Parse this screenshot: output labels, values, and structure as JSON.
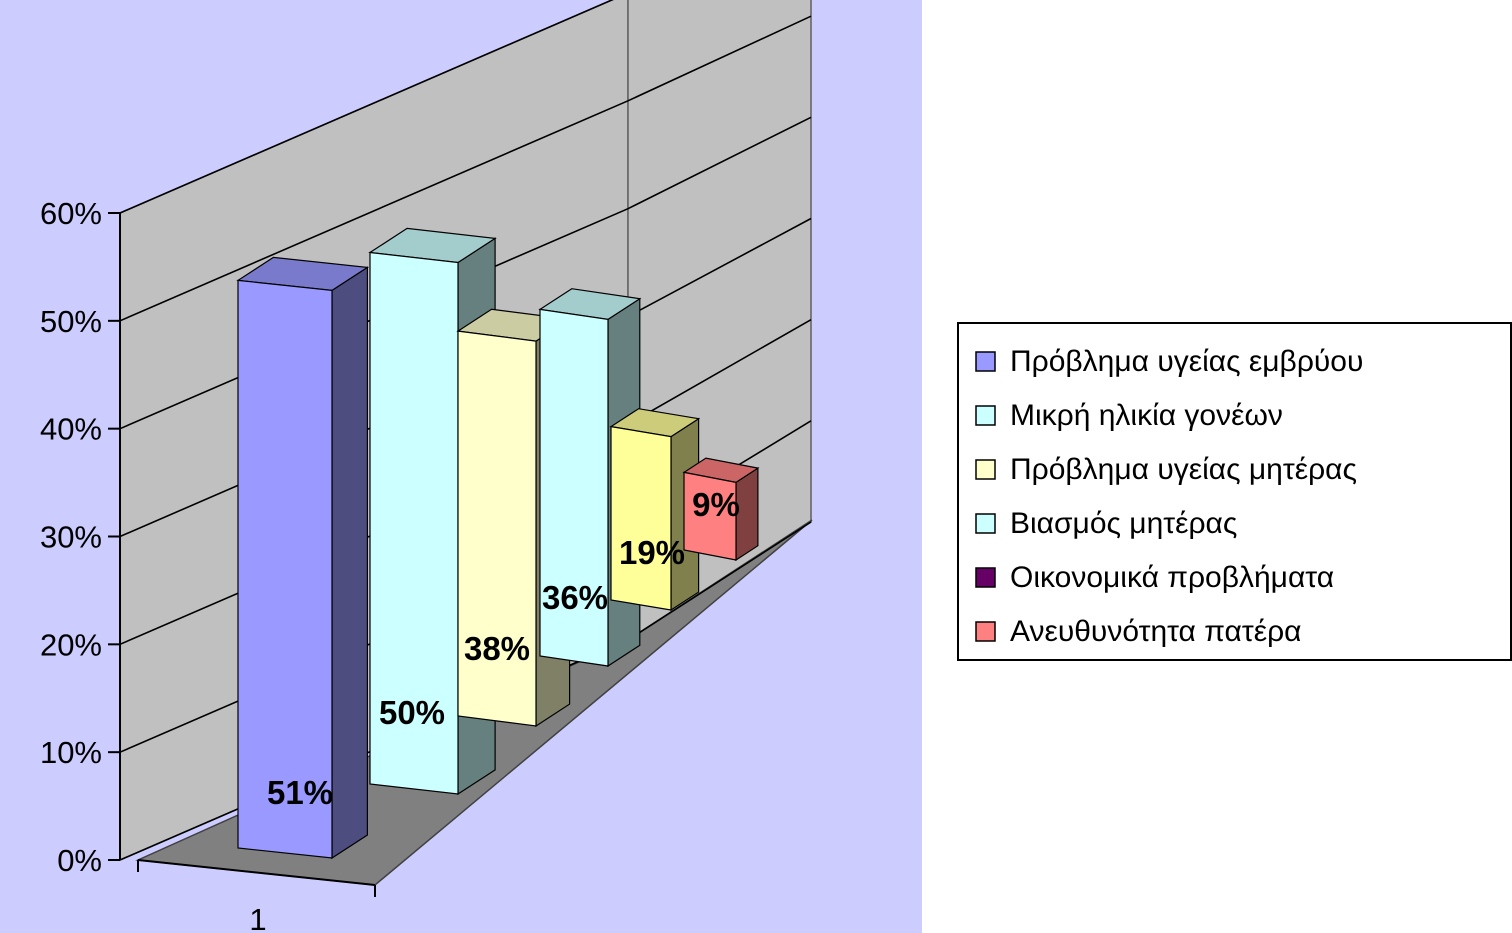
{
  "chart_data": {
    "type": "bar",
    "style": "3d-clustered-column",
    "categories": [
      "1"
    ],
    "series": [
      {
        "name": "Πρόβλημα υγείας εμβρύου",
        "values": [
          0.51
        ],
        "label": "51%",
        "color": "#9999FF"
      },
      {
        "name": "Μικρή ηλικία γονέων",
        "values": [
          0.5
        ],
        "label": "50%",
        "color": "#CCFFFF"
      },
      {
        "name": "Πρόβλημα υγείας μητέρας",
        "values": [
          0.38
        ],
        "label": "38%",
        "color": "#FFFFCC"
      },
      {
        "name": "Βιασμός μητέρας",
        "values": [
          0.36
        ],
        "label": "36%",
        "color": "#CCFFFF"
      },
      {
        "name": "Οικονομικά προβλήματα",
        "values": [
          0.19
        ],
        "label": "19%",
        "color": "#FFFF99"
      },
      {
        "name": "Ανευθυνότητα πατέρα",
        "values": [
          0.09
        ],
        "label": "9%",
        "color": "#FF8080"
      }
    ],
    "legend_swatch_colors": [
      "#9999FF",
      "#CCFFFF",
      "#FFFFCC",
      "#CCFFFF",
      "#660066",
      "#FF8080"
    ],
    "yticks": [
      "0%",
      "10%",
      "20%",
      "30%",
      "40%",
      "50%",
      "60%"
    ],
    "ylim": [
      0,
      0.6
    ],
    "grid": true,
    "legend": "right",
    "colors": {
      "plot_area_background": "#CCCCFF",
      "wall": "#C0C0C0",
      "floor": "#808080"
    }
  }
}
